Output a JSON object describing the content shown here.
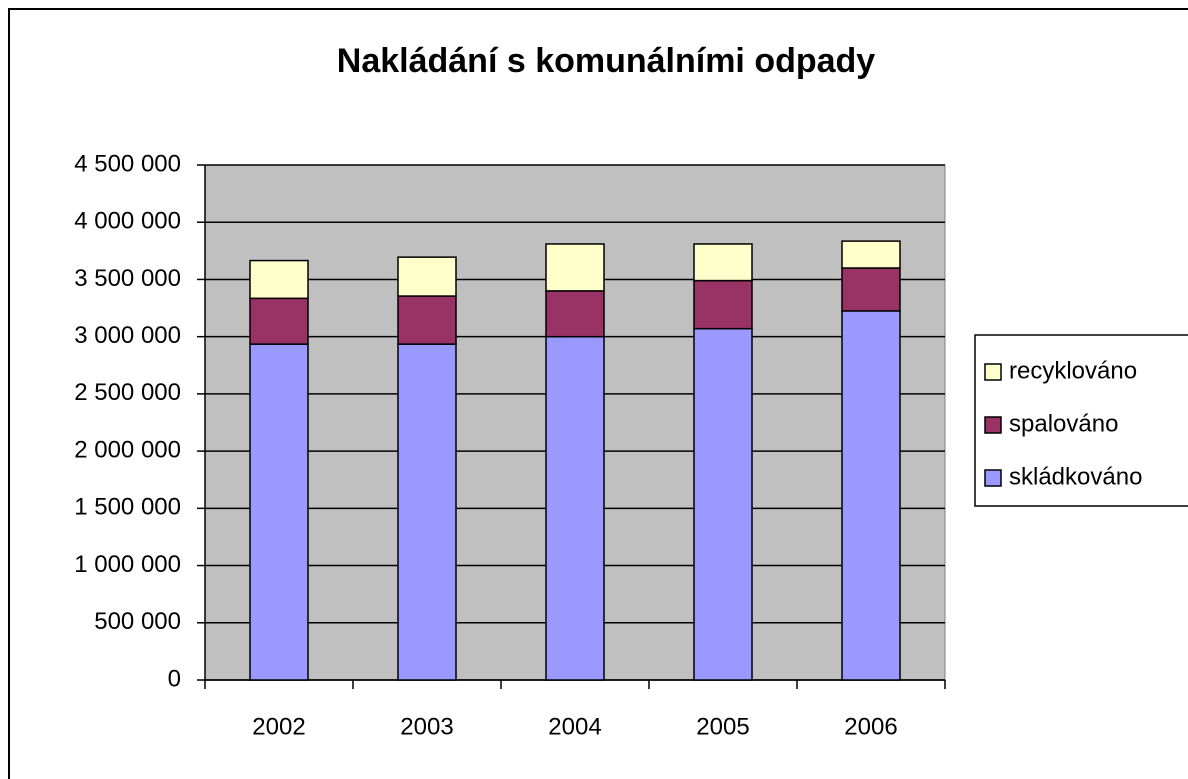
{
  "chart_data": {
    "type": "bar",
    "stacked": true,
    "title": "Nakládání s komunálními odpady",
    "categories": [
      "2002",
      "2003",
      "2004",
      "2005",
      "2006"
    ],
    "series": [
      {
        "name": "skládkováno",
        "color": "#9999ff",
        "values": [
          2935000,
          2935000,
          3000000,
          3070000,
          3225000
        ]
      },
      {
        "name": "spalováno",
        "color": "#993366",
        "values": [
          400000,
          420000,
          400000,
          420000,
          375000
        ]
      },
      {
        "name": "recyklováno",
        "color": "#ffffcc",
        "values": [
          330000,
          340000,
          410000,
          320000,
          235000
        ]
      }
    ],
    "ylim": [
      0,
      4500000
    ],
    "yticks": [
      0,
      {
        "value": 500000,
        "label": "500 000"
      },
      {
        "value": 1000000,
        "label": "1 000 000"
      },
      {
        "value": 1500000,
        "label": "1 500 000"
      },
      {
        "value": 2000000,
        "label": "2 000 000"
      },
      {
        "value": 2500000,
        "label": "2 500 000"
      },
      {
        "value": 3000000,
        "label": "3 000 000"
      },
      {
        "value": 3500000,
        "label": "3 500 000"
      },
      {
        "value": 4000000,
        "label": "4 000 000"
      },
      {
        "value": 4500000,
        "label": "4 500 000"
      }
    ],
    "grid": true,
    "plot_background": "#c0c0c0",
    "legend": "right"
  }
}
